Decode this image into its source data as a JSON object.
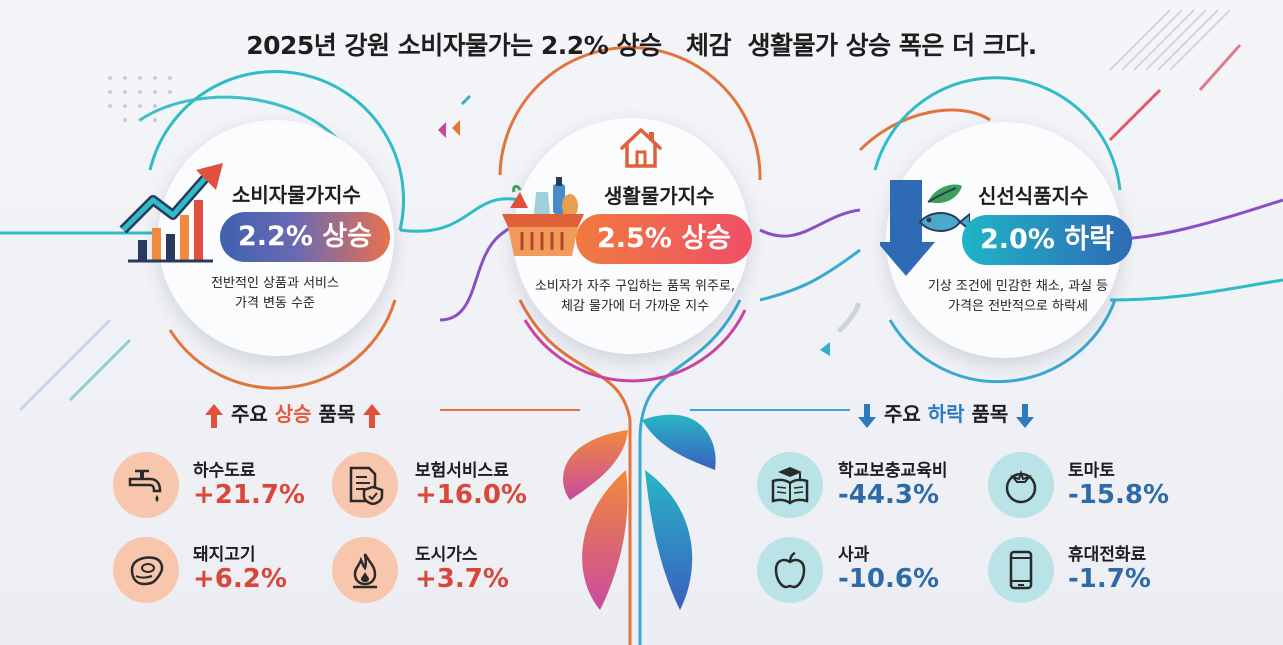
{
  "headline": "2025년 강원 소비자물가는 2.2% 상승   체감  생활물가 상승 폭은 더 크다.",
  "cards": [
    {
      "title": "소비자물가지수",
      "badge": "2.2% 상승",
      "desc": [
        "전반적인 상품과 서비스",
        "가격 변동 수준"
      ],
      "icon": "trending-up-chart-icon"
    },
    {
      "title": "생활물가지수",
      "badge": "2.5% 상승",
      "desc": [
        "소비자가 자주 구입하는 품목 위주로,",
        "체감 물가에 더 가까운 지수"
      ],
      "icon": "grocery-basket-icon"
    },
    {
      "title": "신선식품지수",
      "badge": "2.0% 하락",
      "desc": [
        "기상 조건에 민감한 채소, 과실 등",
        "가격은 전반적으로 하락세"
      ],
      "icon": "fish-leaf-down-icon"
    }
  ],
  "rising": {
    "title_prefix": "주요 ",
    "title_highlight": "상승",
    "title_suffix": " 품목",
    "items": [
      {
        "label": "하수도료",
        "value": "+21.7%",
        "icon": "faucet-icon"
      },
      {
        "label": "보험서비스료",
        "value": "+16.0%",
        "icon": "insurance-document-icon"
      },
      {
        "label": "돼지고기",
        "value": "+6.2%",
        "icon": "meat-icon"
      },
      {
        "label": "도시가스",
        "value": "+3.7%",
        "icon": "gas-flame-icon"
      }
    ]
  },
  "falling": {
    "title_prefix": "주요 ",
    "title_highlight": "하락",
    "title_suffix": " 품목",
    "items": [
      {
        "label": "학교보충교육비",
        "value": "-44.3%",
        "icon": "book-graduation-icon"
      },
      {
        "label": "토마토",
        "value": "-15.8%",
        "icon": "tomato-icon"
      },
      {
        "label": "사과",
        "value": "-10.6%",
        "icon": "apple-icon"
      },
      {
        "label": "휴대전화료",
        "value": "-1.7%",
        "icon": "mobile-phone-icon"
      }
    ]
  },
  "colors": {
    "up_accent": "#e25a3e",
    "down_accent": "#2d7bbd",
    "up_value": "#d9473a",
    "down_value": "#2f6aa8"
  }
}
